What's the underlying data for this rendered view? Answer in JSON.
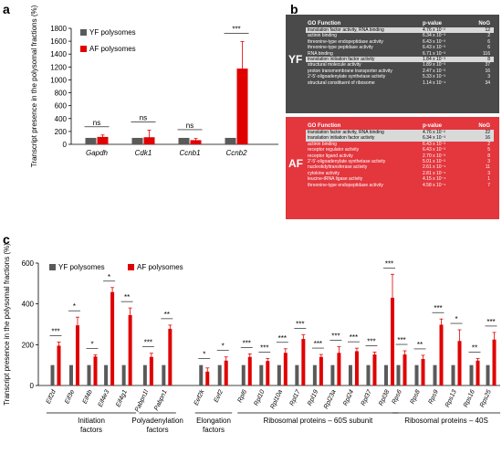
{
  "colors": {
    "yf": "#5a5a5a",
    "af": "#e00000",
    "yf_box": "#4a4a4a",
    "af_box": "#e3363d"
  },
  "panel_labels": {
    "a": "a",
    "b": "b",
    "c": "c"
  },
  "chart_data": [
    {
      "type": "bar",
      "panel": "a",
      "title": "",
      "xlabel": "",
      "ylabel": "Transcript presence in the polysomal fractions (%)",
      "ylim": [
        0,
        1800
      ],
      "yticks": [
        0,
        200,
        400,
        600,
        800,
        1000,
        1200,
        1400,
        1600,
        1800
      ],
      "grid": false,
      "legend_position": "top-left",
      "categories": [
        "Gapdh",
        "Cdk1",
        "Ccnb1",
        "Ccnb2"
      ],
      "series": [
        {
          "name": "YF polysomes",
          "values": [
            100,
            100,
            100,
            100
          ],
          "errors": [
            0,
            0,
            0,
            0
          ]
        },
        {
          "name": "AF polysomes",
          "values": [
            115,
            110,
            65,
            1175
          ],
          "errors": [
            30,
            110,
            25,
            420
          ]
        }
      ],
      "annotations": [
        "ns",
        "ns",
        "ns",
        "***"
      ]
    },
    {
      "type": "bar",
      "panel": "c",
      "title": "",
      "xlabel": "",
      "ylabel": "Transcript presence in the polysomal fractions (%)",
      "ylim": [
        0,
        600
      ],
      "yticks": [
        0,
        200,
        400,
        600
      ],
      "grid": false,
      "legend_position": "top-left",
      "categories": [
        "Eif2d",
        "Eif3e",
        "Eif4b",
        "Eif4e3",
        "Eif4g1",
        "Pabpn1l",
        "Pabpn1",
        "Eef2k",
        "Eef2",
        "Rpl6",
        "Rpl10",
        "Rpl10a",
        "Rpl17",
        "Rpl19",
        "Rpl23a",
        "Rpl24",
        "Rpl37",
        "Rpl38",
        "Rps6",
        "Rps8",
        "Rps9",
        "Rps13",
        "Rps16",
        "Rps25"
      ],
      "series": [
        {
          "name": "YF polysomes",
          "values": [
            100,
            100,
            100,
            100,
            100,
            100,
            100,
            100,
            100,
            100,
            100,
            100,
            100,
            100,
            100,
            100,
            100,
            100,
            100,
            100,
            100,
            100,
            100,
            100
          ],
          "errors": [
            0,
            0,
            0,
            0,
            0,
            0,
            0,
            0,
            0,
            0,
            0,
            0,
            0,
            0,
            0,
            0,
            0,
            0,
            0,
            0,
            0,
            0,
            0,
            0
          ]
        },
        {
          "name": "AF polysomes",
          "values": [
            195,
            295,
            142,
            458,
            345,
            140,
            278,
            68,
            122,
            140,
            120,
            160,
            228,
            140,
            160,
            168,
            152,
            430,
            152,
            130,
            298,
            218,
            122,
            225
          ],
          "errors": [
            18,
            40,
            8,
            22,
            35,
            18,
            18,
            18,
            18,
            15,
            12,
            20,
            20,
            12,
            30,
            15,
            12,
            115,
            18,
            18,
            28,
            55,
            10,
            35
          ]
        }
      ],
      "annotations": [
        "***",
        "*",
        "*",
        "*",
        "**",
        "***",
        "**",
        "*",
        "*",
        "***",
        "***",
        "***",
        "***",
        "***",
        "***",
        "***",
        "***",
        "***",
        "***",
        "**",
        "***",
        "*",
        "**",
        "***"
      ],
      "groups": [
        {
          "label": "Initiation factors",
          "start": 0,
          "end": 4
        },
        {
          "label": "Polyadenylation factors",
          "start": 5,
          "end": 6
        },
        {
          "label": "Elongation factors",
          "start": 7,
          "end": 8
        },
        {
          "label": "Ribosomal proteins – 60S subunit",
          "start": 9,
          "end": 17
        },
        {
          "label": "Ribosomal proteins – 40S",
          "start": 18,
          "end": 23
        }
      ]
    }
  ],
  "go_panel": {
    "headers": {
      "function": "GO Function",
      "pvalue": "p-value",
      "nog": "NoG"
    },
    "yf": {
      "label": "YF",
      "rows": [
        {
          "function": "translation factor activity, RNA binding",
          "pvalue": "4.76 x 10⁻²",
          "nog": "12",
          "highlight": true
        },
        {
          "function": "actinin binding",
          "pvalue": "6.34 x 10⁻³",
          "nog": "2",
          "highlight": false
        },
        {
          "function": "threonine-type endopeptidase activity",
          "pvalue": "6.43 x 10⁻³",
          "nog": "6",
          "highlight": false
        },
        {
          "function": "threonine-type peptidase activity",
          "pvalue": "6.43 x 10⁻³",
          "nog": "6",
          "highlight": false
        },
        {
          "function": "RNA binding",
          "pvalue": "6.71 x 10⁻³",
          "nog": "116",
          "highlight": false
        },
        {
          "function": "translation initiation factor activity",
          "pvalue": "1.84 x 10⁻³",
          "nog": "8",
          "highlight": true
        },
        {
          "function": "structural molecule activity",
          "pvalue": "1.89 x 10⁻³",
          "nog": "37",
          "highlight": false
        },
        {
          "function": "proton transmembrane transporter activity",
          "pvalue": "2.47 x 10⁻³",
          "nog": "16",
          "highlight": false
        },
        {
          "function": "2'-5'-oligoadenylate synthetase activity",
          "pvalue": "5.33 x 10⁻³",
          "nog": "3",
          "highlight": false
        },
        {
          "function": "structural constituent of ribosome",
          "pvalue": "1.14 x 10⁻⁴",
          "nog": "34",
          "highlight": false
        }
      ]
    },
    "af": {
      "label": "AF",
      "rows": [
        {
          "function": "translation factor activity, RNA binding",
          "pvalue": "4.76 x 10⁻²",
          "nog": "22",
          "highlight": true
        },
        {
          "function": "translation initiation factor activity",
          "pvalue": "6.34 x 10⁻³",
          "nog": "16",
          "highlight": true
        },
        {
          "function": "actinin binding",
          "pvalue": "6.43 x 10⁻³",
          "nog": "2",
          "highlight": false
        },
        {
          "function": "receptor regulator activity",
          "pvalue": "6.43 x 10⁻³",
          "nog": "5",
          "highlight": false
        },
        {
          "function": "receptor ligand activity",
          "pvalue": "2.70 x 10⁻³",
          "nog": "8",
          "highlight": false
        },
        {
          "function": "2'-5'-oligoadenylate synthetase activity",
          "pvalue": "5.01 x 10⁻³",
          "nog": "3",
          "highlight": false
        },
        {
          "function": "nucleotidyltransferase activity",
          "pvalue": "2.61 x 10⁻⁴",
          "nog": "11",
          "highlight": false
        },
        {
          "function": "cytokine activity",
          "pvalue": "2.81 x 10⁻⁴",
          "nog": "3",
          "highlight": false
        },
        {
          "function": "leucine-tRNA ligase activity",
          "pvalue": "4.15 x 10⁻⁴",
          "nog": "1",
          "highlight": false
        },
        {
          "function": "threonine-type endopeptidase activity",
          "pvalue": "4.58 x 10⁻⁴",
          "nog": "7",
          "highlight": false
        }
      ]
    }
  }
}
